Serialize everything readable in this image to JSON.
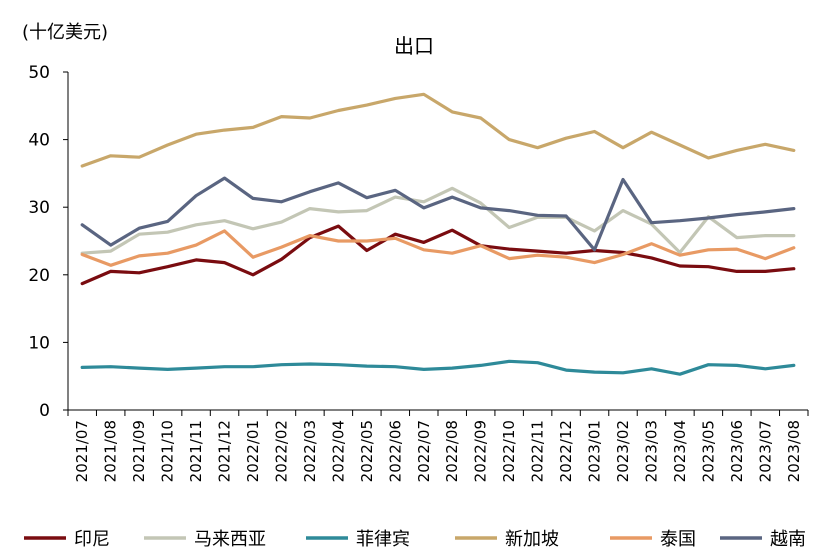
{
  "chart_data": {
    "type": "line",
    "title": "出口",
    "ylabel": "(十亿美元)",
    "xlabel": "",
    "ylim": [
      0,
      50
    ],
    "yticks": [
      0,
      10,
      20,
      30,
      40,
      50
    ],
    "grid": false,
    "legend_position": "bottom",
    "x": [
      "2021/07",
      "2021/08",
      "2021/09",
      "2021/10",
      "2021/11",
      "2021/12",
      "2022/01",
      "2022/02",
      "2022/03",
      "2022/04",
      "2022/05",
      "2022/06",
      "2022/07",
      "2022/08",
      "2022/09",
      "2022/10",
      "2022/11",
      "2022/12",
      "2023/01",
      "2023/02",
      "2023/03",
      "2023/04",
      "2023/05",
      "2023/06",
      "2023/07",
      "2023/08"
    ],
    "series": [
      {
        "name": "印尼",
        "color": "#7a0c10",
        "values": [
          18.7,
          20.5,
          20.3,
          21.2,
          22.2,
          21.8,
          20.0,
          22.3,
          25.5,
          27.2,
          23.6,
          26.0,
          24.8,
          26.6,
          24.3,
          23.8,
          23.5,
          23.2,
          23.6,
          23.3,
          22.5,
          21.3,
          21.2,
          20.5,
          20.5,
          20.9
        ]
      },
      {
        "name": "马来西亚",
        "color": "#c3c6b5",
        "values": [
          23.2,
          23.5,
          26.0,
          26.3,
          27.4,
          28.0,
          26.8,
          27.8,
          29.8,
          29.3,
          29.5,
          31.5,
          30.8,
          32.8,
          30.6,
          27.0,
          28.5,
          28.5,
          26.5,
          29.5,
          27.5,
          23.3,
          28.6,
          25.5,
          25.8,
          25.8
        ]
      },
      {
        "name": "菲律宾",
        "color": "#2e8a99",
        "values": [
          6.3,
          6.4,
          6.2,
          6.0,
          6.2,
          6.4,
          6.4,
          6.7,
          6.8,
          6.7,
          6.5,
          6.4,
          6.0,
          6.2,
          6.6,
          7.2,
          7.0,
          5.9,
          5.6,
          5.5,
          6.1,
          5.3,
          6.7,
          6.6,
          6.1,
          6.6
        ]
      },
      {
        "name": "新加坡",
        "color": "#c8a76a",
        "values": [
          36.1,
          37.6,
          37.4,
          39.2,
          40.8,
          41.4,
          41.8,
          43.4,
          43.2,
          44.3,
          45.1,
          46.1,
          46.7,
          44.1,
          43.2,
          40.0,
          38.8,
          40.2,
          41.2,
          38.8,
          41.1,
          39.2,
          37.3,
          38.4,
          39.3,
          38.4
        ]
      },
      {
        "name": "泰国",
        "color": "#e89a64",
        "values": [
          23.0,
          21.4,
          22.8,
          23.2,
          24.4,
          26.5,
          22.6,
          24.1,
          25.8,
          25.0,
          25.0,
          25.4,
          23.7,
          23.2,
          24.3,
          22.4,
          22.9,
          22.6,
          21.8,
          23.0,
          24.6,
          22.9,
          23.7,
          23.8,
          22.4,
          24.0
        ]
      },
      {
        "name": "越南",
        "color": "#5a6581",
        "values": [
          27.4,
          24.4,
          26.9,
          27.9,
          31.7,
          34.3,
          31.3,
          30.8,
          32.3,
          33.6,
          31.4,
          32.5,
          29.9,
          31.5,
          29.9,
          29.5,
          28.8,
          28.7,
          23.7,
          34.1,
          27.7,
          28.0,
          28.4,
          28.9,
          29.3,
          29.8
        ]
      }
    ]
  }
}
